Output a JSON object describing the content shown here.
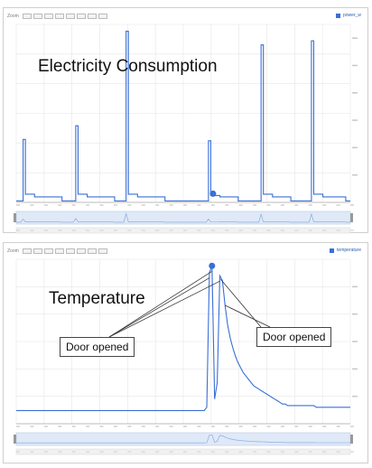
{
  "panel1": {
    "zoom_label": "Zoom",
    "legend_label": "power_w",
    "legend_value": "",
    "title": "Electricity Consumption"
  },
  "panel2": {
    "zoom_label": "Zoom",
    "legend_label": "temperature",
    "legend_value": "",
    "title": "Temperature",
    "callout_left": "Door opened",
    "callout_right": "Door opened"
  },
  "colors": {
    "series": "#3a6fd6",
    "grid": "#e6e6e6",
    "navigator": "#dfe9f7"
  },
  "chart_data": [
    {
      "type": "line",
      "title": "Electricity Consumption",
      "ylim": [
        0,
        1300
      ],
      "y_ticks": [
        200,
        400,
        600,
        800,
        1000,
        1200
      ],
      "grid": true,
      "series": [
        {
          "values": [
            10,
            10,
            10,
            460,
            60,
            60,
            60,
            60,
            40,
            40,
            40,
            40,
            40,
            40,
            40,
            40,
            40,
            40,
            40,
            40,
            10,
            10,
            10,
            10,
            10,
            10,
            560,
            60,
            60,
            60,
            60,
            40,
            40,
            40,
            40,
            40,
            40,
            40,
            40,
            40,
            40,
            40,
            40,
            10,
            10,
            10,
            10,
            10,
            1250,
            60,
            60,
            60,
            60,
            40,
            40,
            40,
            40,
            40,
            40,
            40,
            40,
            40,
            40,
            40,
            40,
            10,
            10,
            10,
            10,
            10,
            10,
            10,
            10,
            10,
            10,
            10,
            10,
            10,
            10,
            10,
            10,
            10,
            10,
            10,
            450,
            50,
            50,
            50,
            50,
            40,
            40,
            40,
            40,
            40,
            40,
            40,
            40,
            10,
            10,
            10,
            10,
            10,
            10,
            10,
            10,
            10,
            10,
            1150,
            60,
            60,
            60,
            60,
            40,
            40,
            40,
            40,
            40,
            40,
            40,
            40,
            10,
            10,
            10,
            10,
            10,
            10,
            10,
            10,
            10,
            1180,
            60,
            60,
            60,
            60,
            40,
            40,
            40,
            40,
            40,
            40,
            40,
            40,
            40,
            40,
            10,
            10,
            10
          ]
        }
      ]
    },
    {
      "type": "line",
      "title": "Temperature",
      "ylim": [
        0,
        10
      ],
      "grid": true,
      "series": [
        {
          "values": [
            0.8,
            0.8,
            0.8,
            0.8,
            0.8,
            0.8,
            0.8,
            0.8,
            0.8,
            0.8,
            0.8,
            0.8,
            0.8,
            0.8,
            0.8,
            0.8,
            0.8,
            0.8,
            0.8,
            0.8,
            0.8,
            0.8,
            0.8,
            0.8,
            0.8,
            0.8,
            0.8,
            0.8,
            0.8,
            0.8,
            0.8,
            0.8,
            0.8,
            0.8,
            0.8,
            0.8,
            0.8,
            0.8,
            0.8,
            0.8,
            0.8,
            0.8,
            0.8,
            0.8,
            0.8,
            0.8,
            0.8,
            0.8,
            0.8,
            0.8,
            0.8,
            0.8,
            0.8,
            0.8,
            0.8,
            0.8,
            0.8,
            0.8,
            0.8,
            0.8,
            0.8,
            0.8,
            0.8,
            0.8,
            0.8,
            0.8,
            0.8,
            0.8,
            0.8,
            0.8,
            0.8,
            0.8,
            0.8,
            1.0,
            9.2,
            9.6,
            1.5,
            2.5,
            9.0,
            8.7,
            7.2,
            6.0,
            5.2,
            4.6,
            4.1,
            3.7,
            3.4,
            3.1,
            2.9,
            2.7,
            2.5,
            2.3,
            2.2,
            2.1,
            2.0,
            1.9,
            1.8,
            1.7,
            1.6,
            1.5,
            1.4,
            1.3,
            1.2,
            1.2,
            1.1,
            1.1,
            1.1,
            1.1,
            1.1,
            1.1,
            1.1,
            1.1,
            1.1,
            1.1,
            1.1,
            1.0,
            1.0,
            1.0,
            1.0,
            1.0,
            1.0,
            1.0,
            1.0,
            1.0,
            1.0,
            1.0,
            1.0,
            1.0,
            1.0
          ]
        }
      ]
    }
  ]
}
